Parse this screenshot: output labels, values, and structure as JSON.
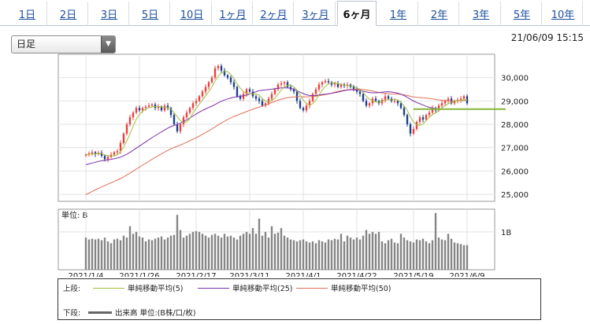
{
  "tabs": [
    {
      "label": "1日",
      "active": false
    },
    {
      "label": "2日",
      "active": false
    },
    {
      "label": "3日",
      "active": false
    },
    {
      "label": "5日",
      "active": false
    },
    {
      "label": "10日",
      "active": false
    },
    {
      "label": "1ヶ月",
      "active": false
    },
    {
      "label": "2ヶ月",
      "active": false
    },
    {
      "label": "3ヶ月",
      "active": false
    },
    {
      "label": "6ヶ月",
      "active": true
    },
    {
      "label": "1年",
      "active": false
    },
    {
      "label": "2年",
      "active": false
    },
    {
      "label": "3年",
      "active": false
    },
    {
      "label": "5年",
      "active": false
    },
    {
      "label": "10年",
      "active": false
    }
  ],
  "period_select": {
    "value": "日足"
  },
  "timestamp": "21/06/09 15:15",
  "legend": {
    "upper_label": "上段:",
    "lower_label": "下段:",
    "ma5_label": "単純移動平均(5)",
    "ma25_label": "単純移動平均(25)",
    "ma50_label": "単純移動平均(50)",
    "volume_label": "出来高 単位:(B株/口/枚)"
  },
  "colors": {
    "up": "#e8413a",
    "down": "#1c3f8a",
    "ma5": "#9fbf3b",
    "ma25": "#7b2fa8",
    "ma50": "#e07058",
    "volume": "#858585",
    "hline": "#86b83a"
  },
  "chart_data": [
    {
      "type": "candlestick",
      "x_tick_labels": [
        "2021/1/4",
        "2021/1/26",
        "2021/2/17",
        "2021/3/11",
        "2021/4/1",
        "2021/4/22",
        "2021/5/19",
        "2021/6/9"
      ],
      "y_tick_labels": [
        "30,000",
        "29,000",
        "28,000",
        "27,000",
        "26,000",
        "25,000"
      ],
      "ylim": [
        24700,
        31000
      ],
      "closes": [
        26700,
        26750,
        26800,
        26720,
        26780,
        26650,
        26500,
        26600,
        26700,
        26800,
        26850,
        27200,
        27600,
        28000,
        28300,
        28500,
        28700,
        28600,
        28700,
        28750,
        28800,
        28850,
        28700,
        28750,
        28600,
        28800,
        28700,
        28400,
        28000,
        27700,
        28000,
        28300,
        28500,
        28700,
        28900,
        29000,
        29200,
        29400,
        29600,
        29800,
        30000,
        30400,
        30500,
        30300,
        30100,
        30000,
        29800,
        29600,
        29200,
        29100,
        29300,
        29500,
        29400,
        29200,
        29100,
        29000,
        28800,
        28900,
        29100,
        29300,
        29500,
        29700,
        29750,
        29800,
        29600,
        29500,
        29400,
        29000,
        28700,
        28600,
        28800,
        29000,
        29300,
        29500,
        29700,
        29800,
        29850,
        29800,
        29700,
        29750,
        29600,
        29700,
        29650,
        29700,
        29600,
        29500,
        29400,
        29300,
        29000,
        28800,
        28900,
        29100,
        29000,
        28900,
        29050,
        29200,
        29100,
        29000,
        29000,
        28900,
        28700,
        28400,
        28000,
        27600,
        27800,
        28100,
        28300,
        28200,
        28400,
        28500,
        28700,
        28600,
        28800,
        28900,
        29000,
        29100,
        28900,
        29000,
        29050,
        29100,
        29200,
        28900
      ],
      "hline_value": 28650,
      "ma_series": [
        "単純移動平均(5)",
        "単純移動平均(25)",
        "単純移動平均(50)"
      ]
    },
    {
      "type": "bar",
      "title": "単位: B",
      "y_tick_labels": [
        "1B"
      ],
      "ylim": [
        0,
        1.6
      ],
      "values": [
        0.85,
        0.8,
        0.82,
        0.8,
        0.82,
        0.78,
        0.85,
        0.75,
        0.7,
        0.8,
        0.82,
        0.78,
        0.9,
        0.85,
        1.15,
        0.95,
        1.0,
        0.88,
        0.85,
        0.75,
        0.8,
        0.78,
        0.82,
        0.85,
        0.88,
        0.8,
        0.85,
        0.9,
        0.92,
        1.45,
        1.05,
        0.85,
        0.9,
        0.95,
        1.0,
        1.02,
        1.0,
        0.95,
        0.9,
        0.85,
        0.92,
        0.95,
        0.9,
        0.85,
        0.95,
        0.88,
        0.9,
        0.85,
        0.8,
        0.9,
        0.95,
        1.0,
        0.95,
        1.1,
        0.95,
        1.35,
        0.9,
        1.0,
        0.85,
        1.15,
        0.95,
        0.98,
        1.1,
        0.9,
        0.85,
        0.8,
        0.78,
        0.75,
        0.78,
        0.8,
        0.75,
        0.72,
        0.75,
        0.7,
        0.78,
        0.75,
        0.72,
        0.8,
        0.78,
        0.82,
        0.8,
        0.95,
        0.75,
        0.9,
        0.85,
        0.8,
        0.85,
        0.8,
        0.9,
        1.05,
        0.95,
        1.0,
        0.95,
        1.0,
        0.75,
        0.7,
        0.78,
        0.82,
        0.72,
        0.7,
        0.95,
        0.85,
        0.78,
        0.75,
        0.72,
        0.8,
        0.78,
        0.82,
        0.75,
        0.7,
        0.78,
        1.5,
        0.85,
        0.8,
        0.78,
        0.95,
        0.82,
        0.72,
        0.7,
        0.68,
        0.65,
        0.65
      ]
    }
  ]
}
